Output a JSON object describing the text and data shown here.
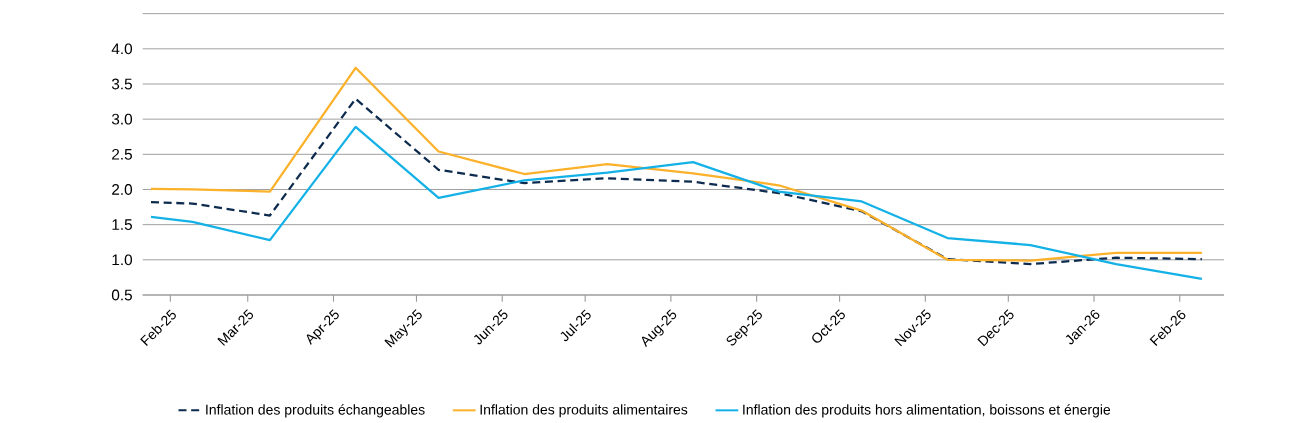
{
  "chart_data": {
    "type": "line",
    "x": [
      "2025-01-25",
      "2025-02-09",
      "2025-03-09",
      "2025-04-09",
      "2025-05-09",
      "2025-06-09",
      "2025-07-09",
      "2025-08-09",
      "2025-09-09",
      "2025-10-09",
      "2025-11-09",
      "2025-12-09",
      "2026-01-09",
      "2026-02-09"
    ],
    "xlim": [
      "2025-01-22",
      "2026-02-17"
    ],
    "xticks": [
      {
        "value": "2025-02-01",
        "label": "Feb-25"
      },
      {
        "value": "2025-03-01",
        "label": "Mar-25"
      },
      {
        "value": "2025-04-01",
        "label": "Apr-25"
      },
      {
        "value": "2025-05-01",
        "label": "May-25"
      },
      {
        "value": "2025-06-01",
        "label": "Jun-25"
      },
      {
        "value": "2025-07-01",
        "label": "Jul-25"
      },
      {
        "value": "2025-08-01",
        "label": "Aug-25"
      },
      {
        "value": "2025-09-01",
        "label": "Sep-25"
      },
      {
        "value": "2025-10-01",
        "label": "Oct-25"
      },
      {
        "value": "2025-11-01",
        "label": "Nov-25"
      },
      {
        "value": "2025-12-01",
        "label": "Dec-25"
      },
      {
        "value": "2026-01-01",
        "label": "Jan-26"
      },
      {
        "value": "2026-02-01",
        "label": "Feb-26"
      }
    ],
    "ylim": [
      0.5,
      4.5
    ],
    "yticks": [
      {
        "value": 0.5,
        "label": "0.5"
      },
      {
        "value": 1.0,
        "label": "1.0"
      },
      {
        "value": 1.5,
        "label": "1.5"
      },
      {
        "value": 2.0,
        "label": "2.0"
      },
      {
        "value": 2.5,
        "label": "2.5"
      },
      {
        "value": 3.0,
        "label": "3.0"
      },
      {
        "value": 3.5,
        "label": "3.5"
      },
      {
        "value": 4.0,
        "label": "4.0"
      },
      {
        "value": 4.5,
        "label": null
      }
    ],
    "grid": "y",
    "legend": "bottom",
    "series": [
      {
        "name": "Inflation des produits échangeables",
        "color": "#0d2b4e",
        "line_style": "dashed",
        "values": [
          1.82,
          1.8,
          1.63,
          3.29,
          2.28,
          2.09,
          2.16,
          2.11,
          1.95,
          1.69,
          1.01,
          0.94,
          1.03,
          1.01
        ]
      },
      {
        "name": "Inflation des produits alimentaires",
        "color": "#fbb12a",
        "line_style": "solid",
        "values": [
          2.01,
          2.0,
          1.97,
          3.73,
          2.54,
          2.22,
          2.36,
          2.23,
          2.06,
          1.7,
          1.0,
          0.99,
          1.1,
          1.1
        ]
      },
      {
        "name": "Inflation des produits hors alimentation, boissons et énergie",
        "color": "#14b1e7",
        "line_style": "solid",
        "values": [
          1.61,
          1.54,
          1.28,
          2.89,
          1.88,
          2.13,
          2.24,
          2.39,
          1.97,
          1.83,
          1.31,
          1.21,
          0.94,
          0.73
        ]
      }
    ]
  }
}
